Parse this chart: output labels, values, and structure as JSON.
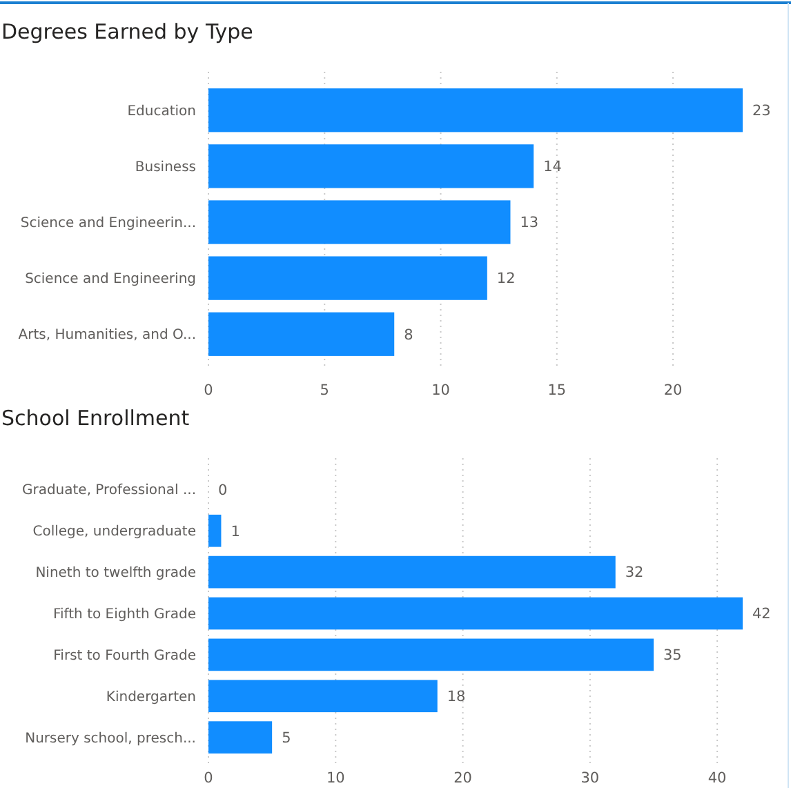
{
  "chart_data": [
    {
      "type": "bar",
      "orientation": "horizontal",
      "title": "Degrees Earned by Type",
      "categories": [
        "Education",
        "Business",
        "Science and Engineerin...",
        "Science and Engineering",
        "Arts, Humanities, and O..."
      ],
      "values": [
        23,
        14,
        13,
        12,
        8
      ],
      "color": "#118dff",
      "xlim": [
        0,
        23
      ],
      "xticks": [
        0,
        5,
        10,
        15,
        20
      ],
      "grid": "x",
      "data_labels": true
    },
    {
      "type": "bar",
      "orientation": "horizontal",
      "title": "School Enrollment",
      "categories": [
        "Graduate, Professional ...",
        "College, undergraduate",
        "Nineth to twelfth grade",
        "Fifth to Eighth Grade",
        "First to Fourth Grade",
        "Kindergarten",
        "Nursery school, presch..."
      ],
      "values": [
        0,
        1,
        32,
        42,
        35,
        18,
        5
      ],
      "color": "#118dff",
      "xlim": [
        0,
        42
      ],
      "xticks": [
        0,
        10,
        20,
        30,
        40
      ],
      "grid": "x",
      "data_labels": true
    }
  ]
}
